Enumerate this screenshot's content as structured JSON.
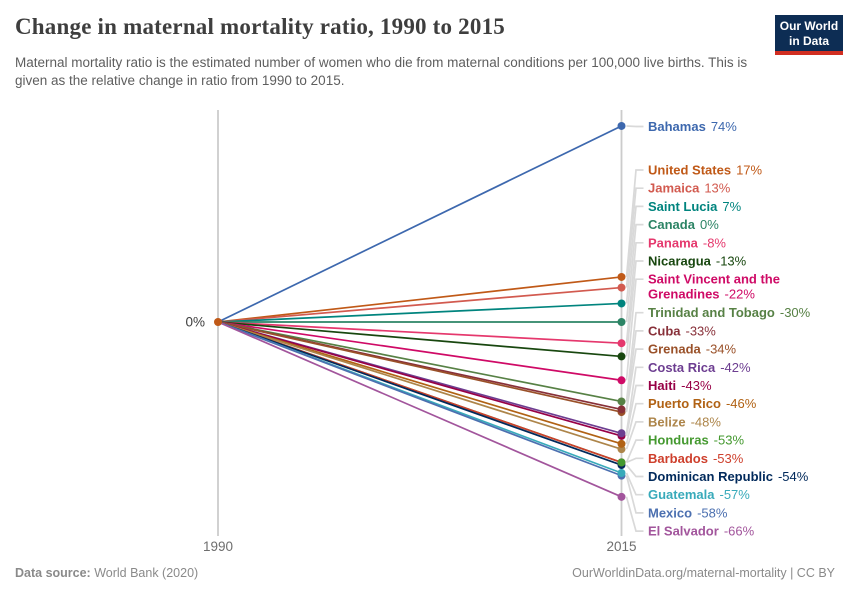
{
  "header": {
    "title": "Change in maternal mortality ratio, 1990 to 2015",
    "subtitle": "Maternal mortality ratio is the estimated number of women who die from maternal conditions per 100,000 live births. This is given as the relative change in ratio from 1990 to 2015.",
    "logo": {
      "line1": "Our World",
      "line2": "in Data",
      "bg_color": "#0d2d54",
      "accent_color": "#d12e21"
    }
  },
  "chart_data": {
    "type": "line",
    "subtype": "slope",
    "x": [
      1990,
      2015
    ],
    "x_tick_labels": [
      "1990",
      "2015"
    ],
    "baseline_label": "0%",
    "unit": "%",
    "ylim": [
      -66,
      74
    ],
    "grid": false,
    "legend_position": "right-labels",
    "axis_color": "#cccccc",
    "connector_color": "#d9d9d9",
    "start_dot_color": "#c05917",
    "tick_color": "#6e6e6e",
    "baseline_label_color": "#3d3d3d",
    "series": [
      {
        "name": "Bahamas",
        "values": [
          0,
          74
        ],
        "label": "74%",
        "color": "#3d68ae"
      },
      {
        "name": "United States",
        "values": [
          0,
          17
        ],
        "label": "17%",
        "color": "#c05917"
      },
      {
        "name": "Jamaica",
        "values": [
          0,
          13
        ],
        "label": "13%",
        "color": "#d25a4f"
      },
      {
        "name": "Saint Lucia",
        "values": [
          0,
          7
        ],
        "label": "7%",
        "color": "#00847e"
      },
      {
        "name": "Canada",
        "values": [
          0,
          0
        ],
        "label": "0%",
        "color": "#2c8465"
      },
      {
        "name": "Panama",
        "values": [
          0,
          -8
        ],
        "label": "-8%",
        "color": "#e5386d"
      },
      {
        "name": "Nicaragua",
        "values": [
          0,
          -13
        ],
        "label": "-13%",
        "color": "#18470f"
      },
      {
        "name": "Saint Vincent and the Grenadines",
        "name_lines": [
          "Saint Vincent and the",
          "Grenadines"
        ],
        "values": [
          0,
          -22
        ],
        "label": "-22%",
        "color": "#cf0a66"
      },
      {
        "name": "Trinidad and Tobago",
        "values": [
          0,
          -30
        ],
        "label": "-30%",
        "color": "#578145"
      },
      {
        "name": "Cuba",
        "values": [
          0,
          -33
        ],
        "label": "-33%",
        "color": "#883039"
      },
      {
        "name": "Grenada",
        "values": [
          0,
          -34
        ],
        "label": "-34%",
        "color": "#9a5129"
      },
      {
        "name": "Costa Rica",
        "values": [
          0,
          -42
        ],
        "label": "-42%",
        "color": "#6d3e91"
      },
      {
        "name": "Haiti",
        "values": [
          0,
          -43
        ],
        "label": "-43%",
        "color": "#970046"
      },
      {
        "name": "Puerto Rico",
        "values": [
          0,
          -46
        ],
        "label": "-46%",
        "color": "#b16214"
      },
      {
        "name": "Belize",
        "values": [
          0,
          -48
        ],
        "label": "-48%",
        "color": "#ad854a"
      },
      {
        "name": "Honduras",
        "values": [
          0,
          -53
        ],
        "label": "-53%",
        "color": "#44992f"
      },
      {
        "name": "Barbados",
        "values": [
          0,
          -53
        ],
        "label": "-53%",
        "color": "#ce3f2c"
      },
      {
        "name": "Dominican Republic",
        "values": [
          0,
          -54
        ],
        "label": "-54%",
        "color": "#00295b"
      },
      {
        "name": "Guatemala",
        "values": [
          0,
          -57
        ],
        "label": "-57%",
        "color": "#38aaba"
      },
      {
        "name": "Mexico",
        "values": [
          0,
          -58
        ],
        "label": "-58%",
        "color": "#4c70b0"
      },
      {
        "name": "El Salvador",
        "values": [
          0,
          -66
        ],
        "label": "-66%",
        "color": "#a2559c"
      }
    ]
  },
  "footer": {
    "source_label": "Data source:",
    "source_value": " World Bank (2020)",
    "credit": "OurWorldinData.org/maternal-mortality | CC BY"
  }
}
